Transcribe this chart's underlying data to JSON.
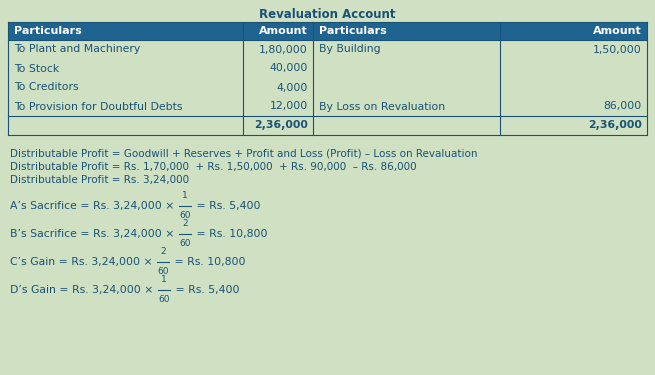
{
  "title": "Revaluation Account",
  "bg_color": "#cfe0c3",
  "header_bg": "#1f6391",
  "header_fg": "#ffffff",
  "table_fg": "#1a5276",
  "header_row": [
    "Particulars",
    "Amount",
    "Particulars",
    "Amount"
  ],
  "left_rows": [
    [
      "To Plant and Machinery",
      "1,80,000"
    ],
    [
      "To Stock",
      "40,000"
    ],
    [
      "To Creditors",
      "4,000"
    ],
    [
      "To Provision for Doubtful Debts",
      "12,000"
    ],
    [
      "",
      "2,36,000"
    ]
  ],
  "right_rows": [
    [
      "By Building",
      "1,50,000"
    ],
    [
      "",
      ""
    ],
    [
      "",
      ""
    ],
    [
      "By Loss on Revaluation",
      "86,000"
    ],
    [
      "",
      "2,36,000"
    ]
  ],
  "text_lines": [
    "Distributable Profit = Goodwill + Reserves + Profit and Loss (Profit) – Loss on Revaluation",
    "Distributable Profit = Rs. 1,70,000  + Rs. 1,50,000  + Rs. 90,000  – Rs. 86,000",
    "Distributable Profit = Rs. 3,24,000"
  ],
  "formula_lines": [
    {
      "prefix": "A’s Sacrifice = Rs. 3,24,000 × ",
      "num": "1",
      "denom": "60",
      "suffix": " = Rs. 5,400"
    },
    {
      "prefix": "B’s Sacrifice = Rs. 3,24,000 × ",
      "num": "2",
      "denom": "60",
      "suffix": " = Rs. 10,800"
    },
    {
      "prefix": "C’s Gain = Rs. 3,24,000 × ",
      "num": "2",
      "denom": "60",
      "suffix": " = Rs. 10,800"
    },
    {
      "prefix": "D’s Gain = Rs. 3,24,000 × ",
      "num": "1",
      "denom": "60",
      "suffix": " = Rs. 5,400"
    }
  ]
}
